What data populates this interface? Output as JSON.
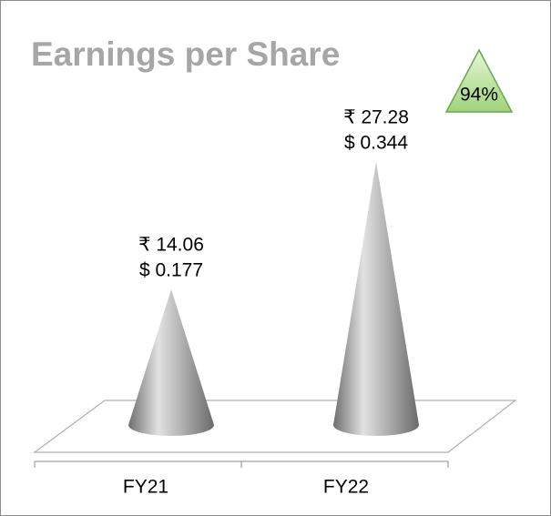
{
  "chart_data": {
    "type": "cone",
    "title": "Earnings per Share",
    "annotation": "94%",
    "categories": [
      "FY21",
      "FY22"
    ],
    "series": [
      {
        "values": [
          14.06,
          27.28
        ],
        "value_labels": [
          "₹ 14.06",
          "₹ 27.28"
        ],
        "color": "#9a9a9a"
      },
      {
        "values": [
          0.177,
          0.344
        ],
        "value_labels": [
          "$ 0.177",
          "$ 0.344"
        ]
      }
    ]
  }
}
